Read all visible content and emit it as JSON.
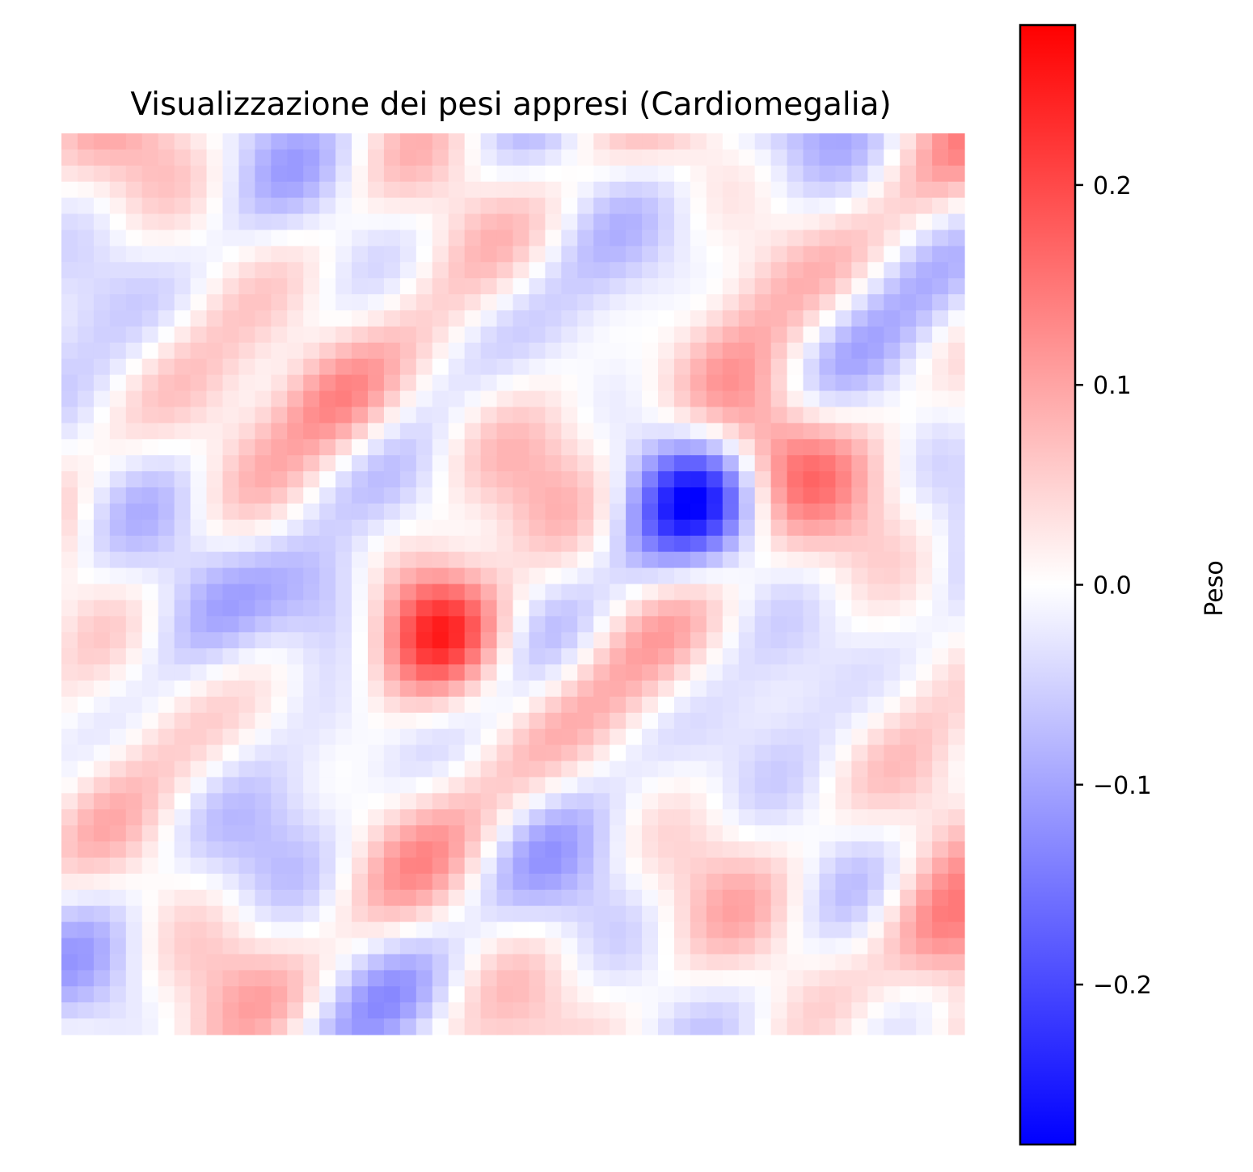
{
  "chart_data": {
    "type": "heatmap",
    "title": "Visualizzazione dei pesi appresi (Cardiomegalia)",
    "xlabel": "",
    "ylabel": "",
    "axes_visible": false,
    "colormap": "bwr",
    "colors": {
      "low": "#0000ff",
      "mid": "#ffffff",
      "high": "#ff0000"
    },
    "value_range": [
      -0.28,
      0.28
    ],
    "colorbar": {
      "label": "Peso",
      "placement": "right",
      "ticks": [
        0.2,
        0.1,
        0.0,
        -0.1,
        -0.2
      ],
      "tick_labels": [
        "0.2",
        "0.1",
        "0.0",
        "−0.1",
        "−0.2"
      ]
    },
    "grid": false,
    "notes_value_regions": [
      {
        "row": 0.55,
        "col": 0.42,
        "value": 0.28
      },
      {
        "row": 0.35,
        "col": 0.77,
        "value": 0.18
      },
      {
        "row": 0.3,
        "col": 0.31,
        "value": 0.14
      },
      {
        "row": 0.9,
        "col": 0.98,
        "value": 0.17
      },
      {
        "row": 0.52,
        "col": 0.31,
        "value": -0.18
      },
      {
        "row": 0.4,
        "col": 0.71,
        "value": -0.19
      }
    ]
  }
}
